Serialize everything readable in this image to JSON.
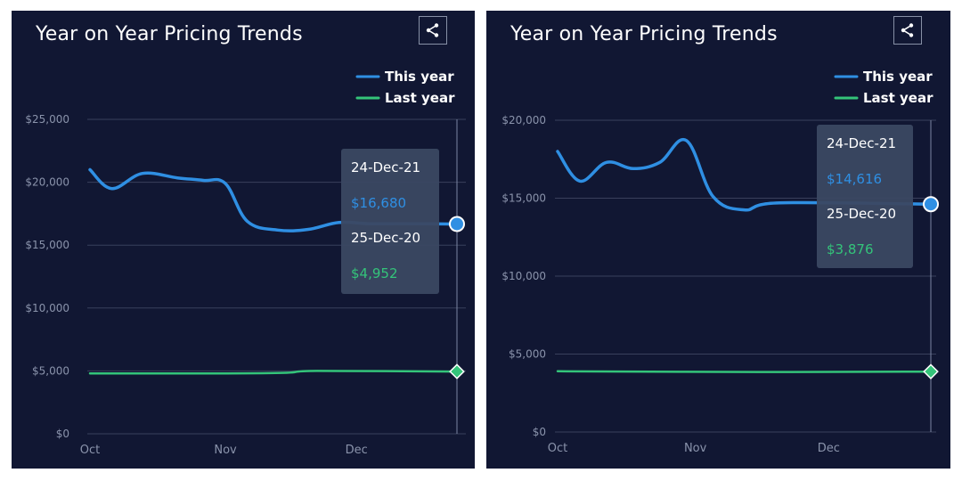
{
  "colors": {
    "this_year": "#2f8fe3",
    "last_year": "#34c47a",
    "panel_bg": "#111733",
    "grid": "#39405c",
    "tick": "#8a93ab",
    "tooltip_bg": "#3b4862",
    "tooltip_date": "#ffffff"
  },
  "icons": {
    "share": "share-icon"
  },
  "chart_data": [
    {
      "type": "line",
      "title": "Year on Year Pricing Trends",
      "x_ticks": [
        "Oct",
        "Nov",
        "Dec"
      ],
      "y_ticks": [
        "$0",
        "$5,000",
        "$10,000",
        "$15,000",
        "$20,000",
        "$25,000"
      ],
      "ylim": [
        0,
        25000
      ],
      "legend": {
        "position": "top-right",
        "entries": [
          "This year",
          "Last year"
        ]
      },
      "grid": true,
      "series": [
        {
          "name": "This year",
          "x": [
            "Oct 1",
            "Oct 6",
            "Oct 13",
            "Oct 21",
            "Oct 27",
            "Nov 1",
            "Nov 6",
            "Nov 13",
            "Nov 20",
            "Nov 27",
            "Dec 4",
            "Dec 13",
            "Dec 24"
          ],
          "y": [
            21000,
            19500,
            20700,
            20350,
            20150,
            19900,
            16900,
            16200,
            16250,
            16800,
            16700,
            16700,
            16680
          ]
        },
        {
          "name": "Last year",
          "x": [
            "Oct 1",
            "Nov 1",
            "Nov 15",
            "Nov 22",
            "Dec 24"
          ],
          "y": [
            4800,
            4800,
            4850,
            5000,
            4952
          ]
        }
      ],
      "tooltip": [
        {
          "date": "24-Dec-21",
          "value": "$16,680"
        },
        {
          "date": "25-Dec-20",
          "value": "$4,952"
        }
      ]
    },
    {
      "type": "line",
      "title": "Year on Year Pricing Trends",
      "x_ticks": [
        "Oct",
        "Nov",
        "Dec"
      ],
      "y_ticks": [
        "$0",
        "$5,000",
        "$10,000",
        "$15,000",
        "$20,000"
      ],
      "ylim": [
        0,
        20000
      ],
      "legend": {
        "position": "top-right",
        "entries": [
          "This year",
          "Last year"
        ]
      },
      "grid": true,
      "series": [
        {
          "name": "This year",
          "x": [
            "Oct 1",
            "Oct 6",
            "Oct 12",
            "Oct 18",
            "Oct 24",
            "Oct 30",
            "Nov 5",
            "Nov 12",
            "Nov 20",
            "Dec 24"
          ],
          "y": [
            18000,
            16100,
            17300,
            16900,
            17300,
            18700,
            15100,
            14250,
            14700,
            14616
          ]
        },
        {
          "name": "Last year",
          "x": [
            "Oct 1",
            "Nov 15",
            "Dec 24"
          ],
          "y": [
            3900,
            3850,
            3876
          ]
        }
      ],
      "tooltip": [
        {
          "date": "24-Dec-21",
          "value": "$14,616"
        },
        {
          "date": "25-Dec-20",
          "value": "$3,876"
        }
      ]
    }
  ]
}
